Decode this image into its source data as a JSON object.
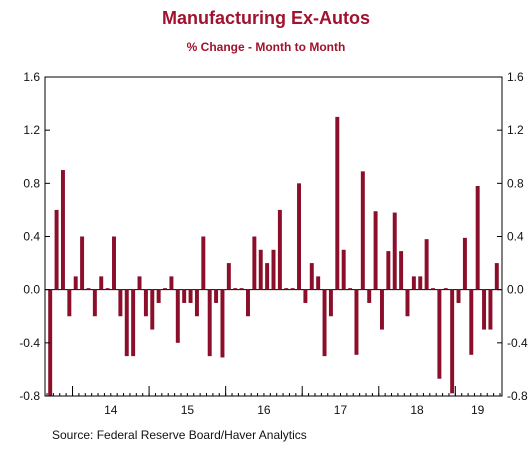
{
  "chart_data": {
    "type": "bar",
    "title": "Manufacturing Ex-Autos",
    "subtitle": "% Change - Month to Month",
    "source": "Source:  Federal Reserve Board/Haver Analytics",
    "ylim": [
      -0.8,
      1.6
    ],
    "yticks": [
      -0.8,
      -0.4,
      0.0,
      0.4,
      0.8,
      1.2,
      1.6
    ],
    "ytick_labels": [
      "-0.8",
      "-0.4",
      "0.0",
      "0.4",
      "0.8",
      "1.2",
      "1.6"
    ],
    "x_start": "2013-09",
    "year_labels": [
      "14",
      "15",
      "16",
      "17",
      "18",
      "19"
    ],
    "grid": false,
    "bar_color": "#8b0f2a",
    "values": [
      -0.8,
      0.6,
      0.9,
      -0.2,
      0.1,
      0.4,
      0.0,
      -0.2,
      0.1,
      0.0,
      0.4,
      -0.2,
      -0.5,
      -0.5,
      0.1,
      -0.2,
      -0.3,
      -0.1,
      0.0,
      0.1,
      -0.4,
      -0.1,
      -0.1,
      -0.2,
      0.4,
      -0.5,
      -0.1,
      -0.51,
      0.2,
      0.0,
      0.0,
      -0.2,
      0.4,
      0.3,
      0.2,
      0.3,
      0.6,
      0.0,
      0.0,
      0.8,
      -0.1,
      0.2,
      0.1,
      -0.5,
      -0.2,
      1.3,
      0.3,
      0.0,
      -0.49,
      0.89,
      -0.1,
      0.59,
      -0.3,
      0.29,
      0.58,
      0.29,
      -0.2,
      0.1,
      0.1,
      0.38,
      0.0,
      -0.67,
      0.0,
      -0.78,
      -0.1,
      0.39,
      -0.49,
      0.78,
      -0.3,
      -0.3,
      0.2
    ]
  }
}
